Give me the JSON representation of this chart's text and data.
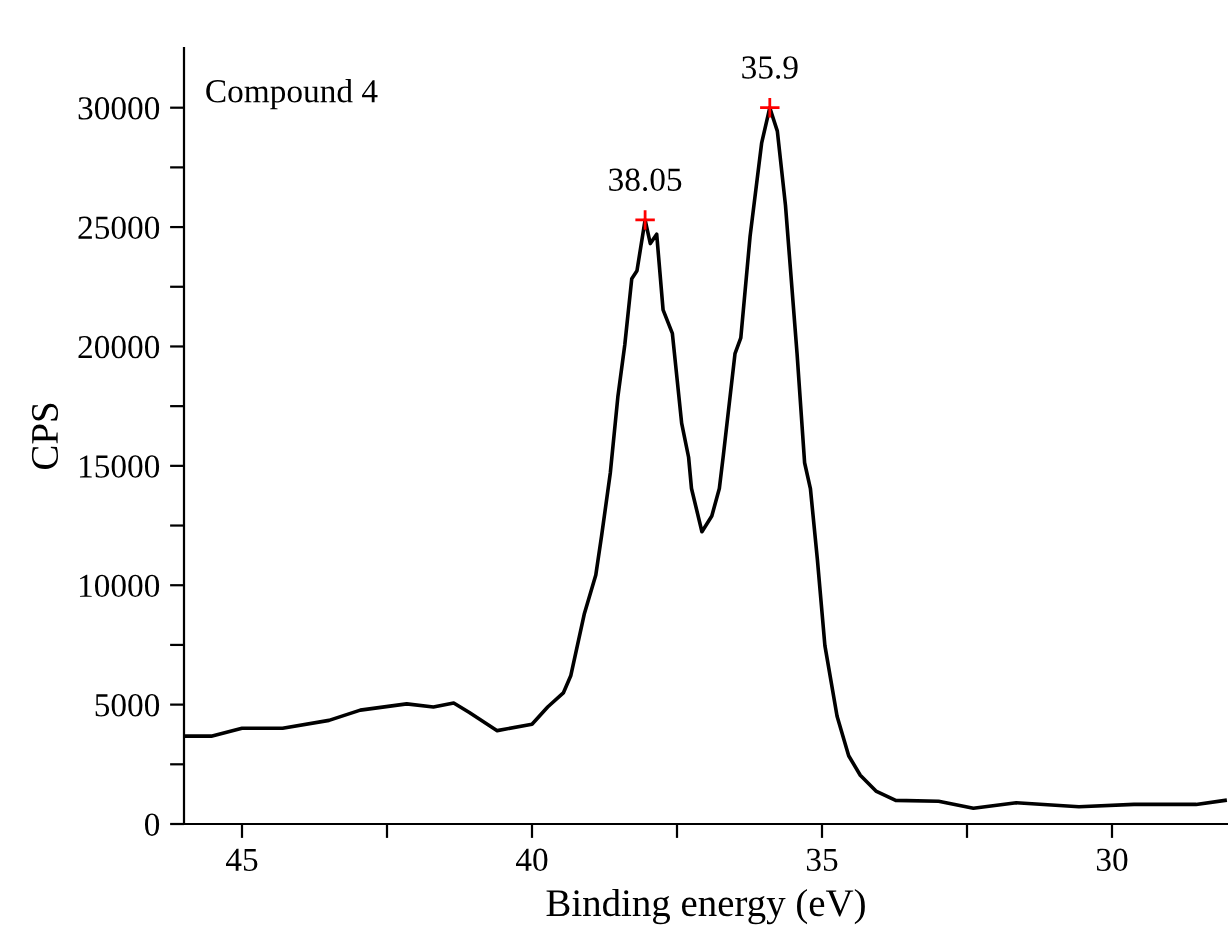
{
  "chart_data": {
    "type": "line",
    "xlabel": "Binding energy (eV)",
    "ylabel": "CPS",
    "annotations": [
      "Compound 4",
      {
        "text": "38.05",
        "x": 38.05,
        "y": 25300
      },
      {
        "text": "35.9",
        "x": 35.9,
        "y": 30000
      }
    ],
    "x": [
      46.0,
      45.53,
      45.0,
      44.3,
      43.5,
      42.96,
      42.16,
      41.7,
      41.35,
      41.08,
      40.6,
      40.0,
      39.73,
      39.46,
      39.33,
      39.1,
      38.9,
      38.8,
      38.65,
      38.52,
      38.4,
      38.28,
      38.19,
      38.05,
      37.96,
      37.85,
      37.74,
      37.58,
      37.42,
      37.3,
      37.25,
      37.07,
      36.9,
      36.77,
      36.7,
      36.5,
      36.4,
      36.24,
      36.04,
      35.9,
      35.77,
      35.63,
      35.43,
      35.3,
      35.2,
      35.08,
      34.95,
      34.74,
      34.54,
      34.34,
      34.07,
      33.73,
      32.99,
      32.39,
      31.65,
      30.57,
      29.62,
      28.55,
      28.05
    ],
    "series": [
      {
        "color": "#000000",
        "values": [
          3680,
          3680,
          4010,
          4010,
          4340,
          4770,
          5030,
          4900,
          5070,
          4670,
          3910,
          4180,
          4900,
          5490,
          6220,
          8780,
          10430,
          12070,
          14700,
          17880,
          20070,
          22840,
          23170,
          25300,
          24310,
          24700,
          21530,
          20550,
          16790,
          15360,
          14050,
          12240,
          12900,
          14050,
          15460,
          19700,
          20360,
          24610,
          28530,
          30000,
          29020,
          25920,
          19700,
          15130,
          14050,
          11090,
          7470,
          4510,
          2860,
          2040,
          1380,
          990,
          950,
          660,
          890,
          720,
          820,
          820,
          990
        ]
      }
    ],
    "xlim": [
      46,
      28
    ],
    "xticks": [
      45,
      {
        "value": 42.5,
        "label": null
      },
      40,
      {
        "value": 37.5,
        "label": null
      },
      35,
      {
        "value": 32.5,
        "label": null
      },
      30
    ],
    "ylim": [
      0,
      32500
    ],
    "yticks": [
      0,
      {
        "value": 2500,
        "label": null
      },
      5000,
      {
        "value": 7500,
        "label": null
      },
      10000,
      {
        "value": 12500,
        "label": null
      },
      15000,
      {
        "value": 17500,
        "label": null
      },
      20000,
      {
        "value": 22500,
        "label": null
      },
      25000,
      {
        "value": 27500,
        "label": null
      },
      30000
    ],
    "grid": false,
    "legend": false,
    "marker": "none",
    "line_style": "solid"
  }
}
